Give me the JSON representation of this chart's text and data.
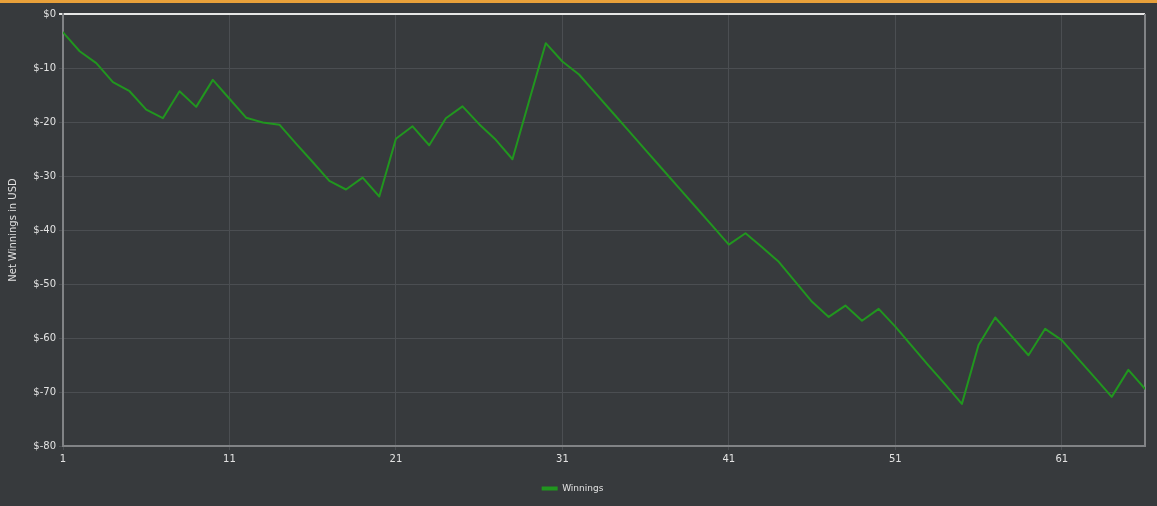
{
  "chart_data": {
    "type": "line",
    "ylabel": "Net Winnings in USD",
    "x": [
      1,
      2,
      3,
      4,
      5,
      6,
      7,
      8,
      9,
      10,
      11,
      12,
      13,
      14,
      15,
      16,
      17,
      18,
      19,
      20,
      21,
      22,
      23,
      24,
      25,
      26,
      27,
      28,
      29,
      30,
      31,
      32,
      33,
      34,
      35,
      36,
      37,
      38,
      39,
      40,
      41,
      42,
      43,
      44,
      45,
      46,
      47,
      48,
      49,
      50,
      51,
      52,
      53,
      54,
      55,
      56,
      57,
      58,
      59,
      60,
      61,
      62,
      63,
      64,
      65,
      66
    ],
    "series": [
      {
        "name": "Winnings",
        "color": "#21961f",
        "values": [
          -3.4,
          -6.9,
          -9.1,
          -12.6,
          -14.3,
          -17.7,
          -19.3,
          -14.3,
          -17.2,
          -12.2,
          -15.7,
          -19.2,
          -20.1,
          -20.5,
          -24.0,
          -27.4,
          -30.9,
          -32.5,
          -30.3,
          -33.8,
          -23.1,
          -20.8,
          -24.3,
          -19.3,
          -17.1,
          -20.4,
          -23.3,
          -26.9,
          -16.1,
          -5.4,
          -8.8,
          -11.2,
          -14.7,
          -18.2,
          -21.7,
          -25.2,
          -28.7,
          -32.2,
          -35.7,
          -39.2,
          -42.7,
          -40.6,
          -43.2,
          -45.9,
          -49.6,
          -53.3,
          -56.1,
          -54.0,
          -56.8,
          -54.6,
          -57.9,
          -61.5,
          -65.1,
          -68.6,
          -72.2,
          -61.3,
          -56.2,
          -59.7,
          -63.2,
          -58.3,
          -60.4,
          -63.9,
          -67.4,
          -70.9,
          -65.9,
          -69.4
        ]
      }
    ],
    "xlim": [
      1,
      66
    ],
    "xticks": [
      1,
      11,
      21,
      31,
      41,
      51,
      61
    ],
    "ylim": [
      -80,
      0
    ],
    "yticks": [
      {
        "value": -80,
        "label": "$-80"
      },
      {
        "value": -70,
        "label": "$-70"
      },
      {
        "value": -60,
        "label": "$-60"
      },
      {
        "value": -50,
        "label": "$-50"
      },
      {
        "value": -40,
        "label": "$-40"
      },
      {
        "value": -30,
        "label": "$-30"
      },
      {
        "value": -20,
        "label": "$-20"
      },
      {
        "value": -10,
        "label": "$-10"
      },
      {
        "value": 0,
        "label": "$0"
      }
    ],
    "grid": true,
    "legend": "bottom",
    "marker": "none",
    "line_style": "solid"
  }
}
